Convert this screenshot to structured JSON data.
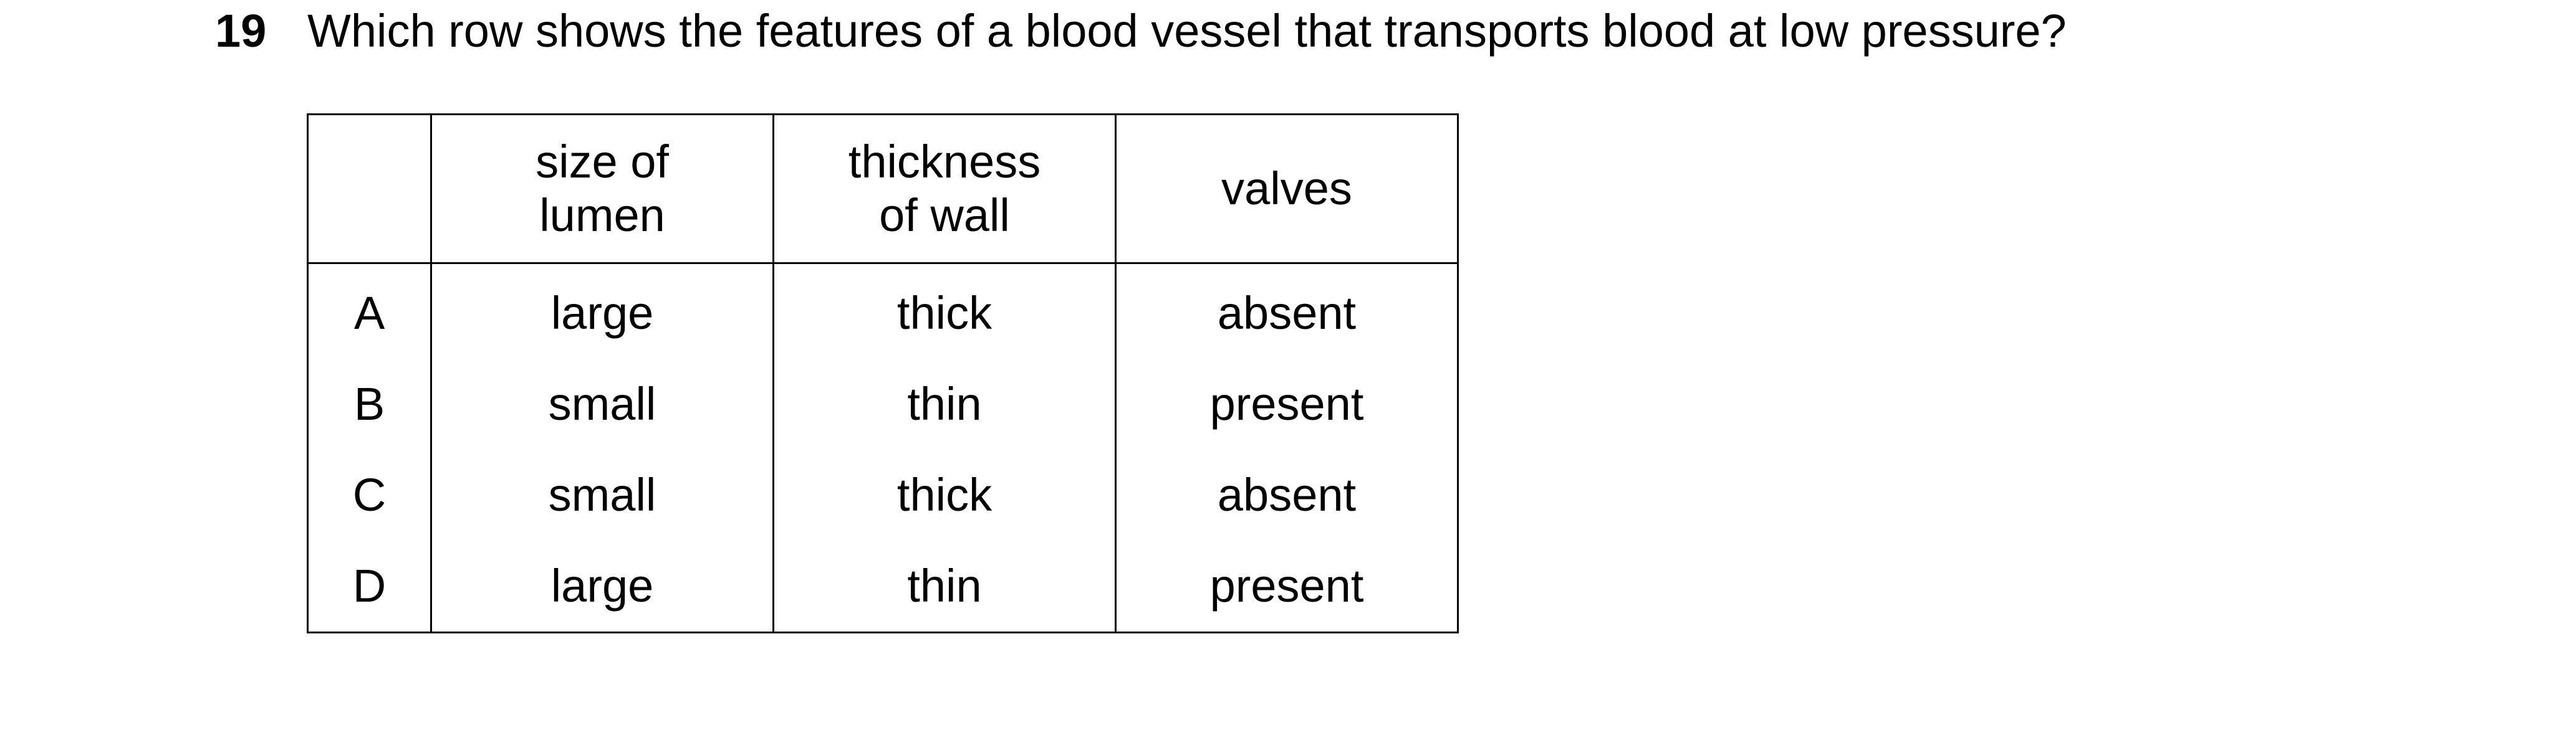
{
  "question": {
    "number": "19",
    "text": "Which row shows the features of a blood vessel that transports blood at low pressure?"
  },
  "table": {
    "headers": {
      "label": "",
      "lumen": [
        "size of",
        "lumen"
      ],
      "wall": [
        "thickness",
        "of wall"
      ],
      "valves": "valves"
    },
    "rows": [
      {
        "label": "A",
        "lumen": "large",
        "wall": "thick",
        "valves": "absent"
      },
      {
        "label": "B",
        "lumen": "small",
        "wall": "thin",
        "valves": "present"
      },
      {
        "label": "C",
        "lumen": "small",
        "wall": "thick",
        "valves": "absent"
      },
      {
        "label": "D",
        "lumen": "large",
        "wall": "thin",
        "valves": "present"
      }
    ]
  }
}
